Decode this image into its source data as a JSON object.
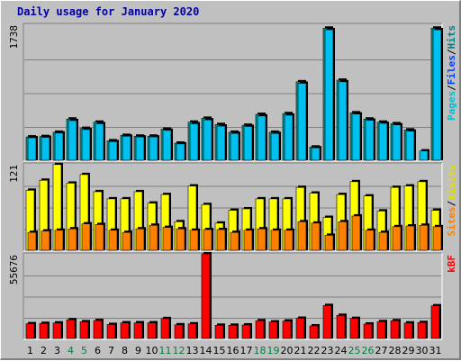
{
  "chart_data": {
    "type": "bar",
    "title": "Daily usage for January 2020",
    "categories": [
      "1",
      "2",
      "3",
      "4",
      "5",
      "6",
      "7",
      "8",
      "9",
      "10",
      "11",
      "12",
      "13",
      "14",
      "15",
      "16",
      "17",
      "18",
      "19",
      "20",
      "21",
      "22",
      "23",
      "24",
      "25",
      "26",
      "27",
      "28",
      "29",
      "30",
      "31"
    ],
    "weekend_days": [
      "4",
      "5",
      "11",
      "12",
      "18",
      "19",
      "25",
      "26"
    ],
    "weekend_color": "#008040",
    "weekday_color": "#000000",
    "panels": [
      {
        "max_label": "1738",
        "ylim": [
          0,
          1738
        ],
        "grid": true,
        "legend": [
          "Pages",
          "/",
          "Files",
          "/",
          "Hits"
        ],
        "legend_colors": [
          "#00c0d0",
          "#000000",
          "#0040ff",
          "#000000",
          "#008080"
        ],
        "series": [
          {
            "name": "Hits",
            "color": "#00a0a0",
            "values": [
              300,
              305,
              360,
              530,
              410,
              490,
              250,
              320,
              310,
              310,
              400,
              220,
              490,
              540,
              460,
              360,
              450,
              590,
              360,
              600,
              1010,
              170,
              1700,
              1030,
              610,
              530,
              490,
              470,
              390,
              0,
              1700
            ]
          },
          {
            "name": "Files",
            "color": "#00c0f0",
            "values": [
              290,
              295,
              350,
              510,
              395,
              470,
              240,
              310,
              300,
              300,
              385,
              210,
              470,
              520,
              440,
              345,
              435,
              570,
              345,
              580,
              990,
              160,
              1680,
              1010,
              595,
              515,
              475,
              455,
              375,
              120,
              1680
            ]
          }
        ]
      },
      {
        "max_label": "121",
        "ylim": [
          0,
          121
        ],
        "grid": true,
        "legend": [
          "Sites",
          "/",
          "Visits"
        ],
        "legend_colors": [
          "#ff8000",
          "#000000",
          "#e0e000"
        ],
        "series": [
          {
            "name": "Visits",
            "color": "#ffff00",
            "values": [
              84,
              98,
              120,
              94,
              106,
              82,
              72,
              72,
              82,
              66,
              78,
              40,
              90,
              64,
              38,
              56,
              58,
              72,
              72,
              72,
              88,
              80,
              46,
              78,
              96,
              76,
              55,
              88,
              90,
              96,
              56
            ]
          },
          {
            "name": "Sites",
            "color": "#ff8000",
            "values": [
              25,
              27,
              28,
              30,
              37,
              36,
              28,
              25,
              30,
              35,
              32,
              30,
              28,
              29,
              29,
              25,
              28,
              30,
              28,
              28,
              40,
              38,
              21,
              40,
              48,
              28,
              25,
              33,
              34,
              35,
              33
            ]
          }
        ]
      },
      {
        "max_label": "55676",
        "ylim": [
          0,
          55676
        ],
        "grid": true,
        "legend": [
          "kB",
          "F"
        ],
        "legend_colors": [
          "#ff0000",
          "#ff0000"
        ],
        "series": [
          {
            "name": "kB F",
            "color": "#ff0000",
            "values": [
              9700,
              9900,
              10200,
              12300,
              11000,
              11800,
              9200,
              10300,
              10300,
              10300,
              13100,
              9000,
              9600,
              55676,
              8700,
              8700,
              8900,
              11700,
              10900,
              11500,
              13300,
              8300,
              21700,
              15200,
              13200,
              9500,
              11100,
              11700,
              10200,
              10500,
              21500
            ]
          }
        ]
      }
    ]
  }
}
